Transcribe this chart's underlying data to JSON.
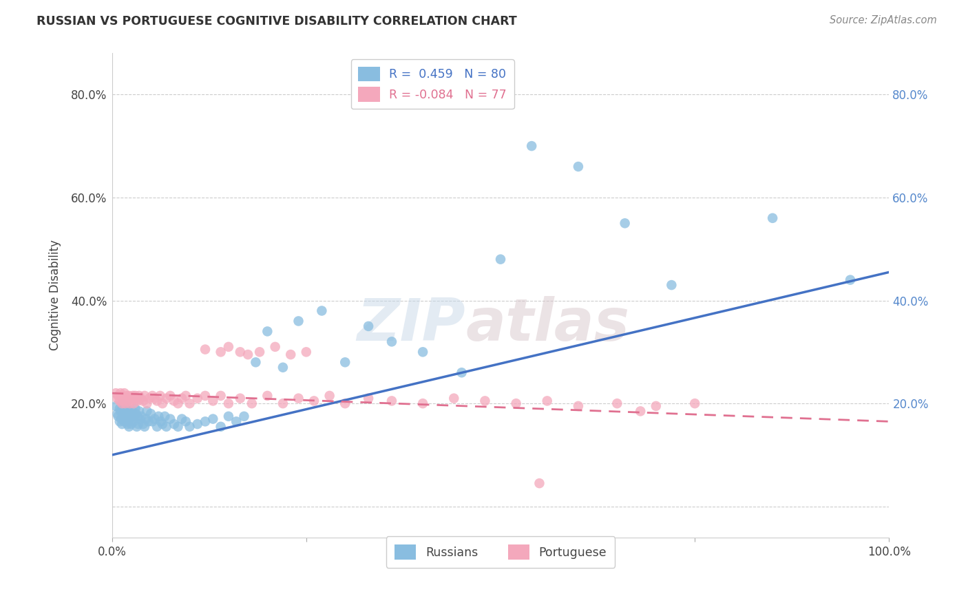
{
  "title": "RUSSIAN VS PORTUGUESE COGNITIVE DISABILITY CORRELATION CHART",
  "source": "Source: ZipAtlas.com",
  "ylabel": "Cognitive Disability",
  "xlim": [
    0.0,
    1.0
  ],
  "ylim": [
    -0.06,
    0.88
  ],
  "xticks": [
    0.0,
    0.25,
    0.5,
    0.75,
    1.0
  ],
  "xticklabels": [
    "0.0%",
    "",
    "",
    "",
    "100.0%"
  ],
  "ytick_positions": [
    0.0,
    0.2,
    0.4,
    0.6,
    0.8
  ],
  "yticklabels_left": [
    "",
    "20.0%",
    "40.0%",
    "60.0%",
    "80.0%"
  ],
  "yticklabels_right": [
    "",
    "20.0%",
    "40.0%",
    "60.0%",
    "80.0%"
  ],
  "grid_color": "#cccccc",
  "background_color": "#ffffff",
  "russian_color": "#89bde0",
  "portuguese_color": "#f4a8bc",
  "russian_line_color": "#4472c4",
  "portuguese_line_color": "#e07090",
  "R_russian": 0.459,
  "N_russian": 80,
  "R_portuguese": -0.084,
  "N_portuguese": 77,
  "watermark_zip": "ZIP",
  "watermark_atlas": "atlas",
  "legend_label_russian": "Russians",
  "legend_label_portuguese": "Portuguese",
  "russian_x": [
    0.005,
    0.007,
    0.008,
    0.01,
    0.01,
    0.011,
    0.012,
    0.013,
    0.013,
    0.014,
    0.015,
    0.016,
    0.016,
    0.017,
    0.018,
    0.019,
    0.02,
    0.02,
    0.021,
    0.021,
    0.022,
    0.022,
    0.023,
    0.024,
    0.025,
    0.026,
    0.027,
    0.028,
    0.03,
    0.031,
    0.032,
    0.033,
    0.034,
    0.035,
    0.036,
    0.038,
    0.04,
    0.042,
    0.044,
    0.045,
    0.047,
    0.05,
    0.052,
    0.055,
    0.058,
    0.06,
    0.063,
    0.065,
    0.068,
    0.07,
    0.075,
    0.08,
    0.085,
    0.09,
    0.095,
    0.1,
    0.11,
    0.12,
    0.13,
    0.14,
    0.15,
    0.16,
    0.17,
    0.185,
    0.2,
    0.22,
    0.24,
    0.27,
    0.3,
    0.33,
    0.36,
    0.4,
    0.45,
    0.5,
    0.54,
    0.6,
    0.66,
    0.72,
    0.85,
    0.95
  ],
  "russian_y": [
    0.195,
    0.18,
    0.175,
    0.19,
    0.165,
    0.185,
    0.17,
    0.2,
    0.16,
    0.195,
    0.175,
    0.165,
    0.185,
    0.195,
    0.17,
    0.18,
    0.16,
    0.19,
    0.175,
    0.165,
    0.185,
    0.155,
    0.17,
    0.175,
    0.16,
    0.185,
    0.175,
    0.165,
    0.19,
    0.18,
    0.155,
    0.175,
    0.16,
    0.185,
    0.17,
    0.175,
    0.16,
    0.155,
    0.17,
    0.185,
    0.165,
    0.18,
    0.165,
    0.17,
    0.155,
    0.175,
    0.165,
    0.16,
    0.175,
    0.155,
    0.17,
    0.16,
    0.155,
    0.17,
    0.165,
    0.155,
    0.16,
    0.165,
    0.17,
    0.155,
    0.175,
    0.165,
    0.175,
    0.28,
    0.34,
    0.27,
    0.36,
    0.38,
    0.28,
    0.35,
    0.32,
    0.3,
    0.26,
    0.48,
    0.7,
    0.66,
    0.55,
    0.43,
    0.56,
    0.44
  ],
  "portuguese_x": [
    0.005,
    0.007,
    0.008,
    0.01,
    0.011,
    0.012,
    0.013,
    0.014,
    0.015,
    0.016,
    0.017,
    0.018,
    0.019,
    0.02,
    0.021,
    0.022,
    0.023,
    0.025,
    0.026,
    0.027,
    0.028,
    0.03,
    0.032,
    0.033,
    0.035,
    0.037,
    0.04,
    0.042,
    0.045,
    0.048,
    0.052,
    0.055,
    0.058,
    0.062,
    0.065,
    0.07,
    0.075,
    0.08,
    0.085,
    0.09,
    0.095,
    0.1,
    0.11,
    0.12,
    0.13,
    0.14,
    0.15,
    0.165,
    0.18,
    0.2,
    0.22,
    0.24,
    0.26,
    0.28,
    0.3,
    0.33,
    0.36,
    0.4,
    0.44,
    0.48,
    0.52,
    0.56,
    0.6,
    0.65,
    0.7,
    0.75,
    0.12,
    0.14,
    0.15,
    0.165,
    0.175,
    0.19,
    0.21,
    0.23,
    0.25,
    0.68,
    0.55
  ],
  "portuguese_y": [
    0.22,
    0.21,
    0.215,
    0.205,
    0.22,
    0.215,
    0.2,
    0.21,
    0.205,
    0.22,
    0.2,
    0.21,
    0.215,
    0.205,
    0.21,
    0.215,
    0.2,
    0.21,
    0.205,
    0.215,
    0.2,
    0.215,
    0.21,
    0.205,
    0.215,
    0.21,
    0.205,
    0.215,
    0.2,
    0.21,
    0.215,
    0.21,
    0.205,
    0.215,
    0.2,
    0.21,
    0.215,
    0.205,
    0.2,
    0.21,
    0.215,
    0.2,
    0.21,
    0.215,
    0.205,
    0.215,
    0.2,
    0.21,
    0.2,
    0.215,
    0.2,
    0.21,
    0.205,
    0.215,
    0.2,
    0.21,
    0.205,
    0.2,
    0.21,
    0.205,
    0.2,
    0.205,
    0.195,
    0.2,
    0.195,
    0.2,
    0.305,
    0.3,
    0.31,
    0.3,
    0.295,
    0.3,
    0.31,
    0.295,
    0.3,
    0.185,
    0.045
  ],
  "rus_line_x0": 0.0,
  "rus_line_y0": 0.1,
  "rus_line_x1": 1.0,
  "rus_line_y1": 0.455,
  "por_line_x0": 0.0,
  "por_line_y0": 0.22,
  "por_line_x1": 1.0,
  "por_line_y1": 0.165
}
